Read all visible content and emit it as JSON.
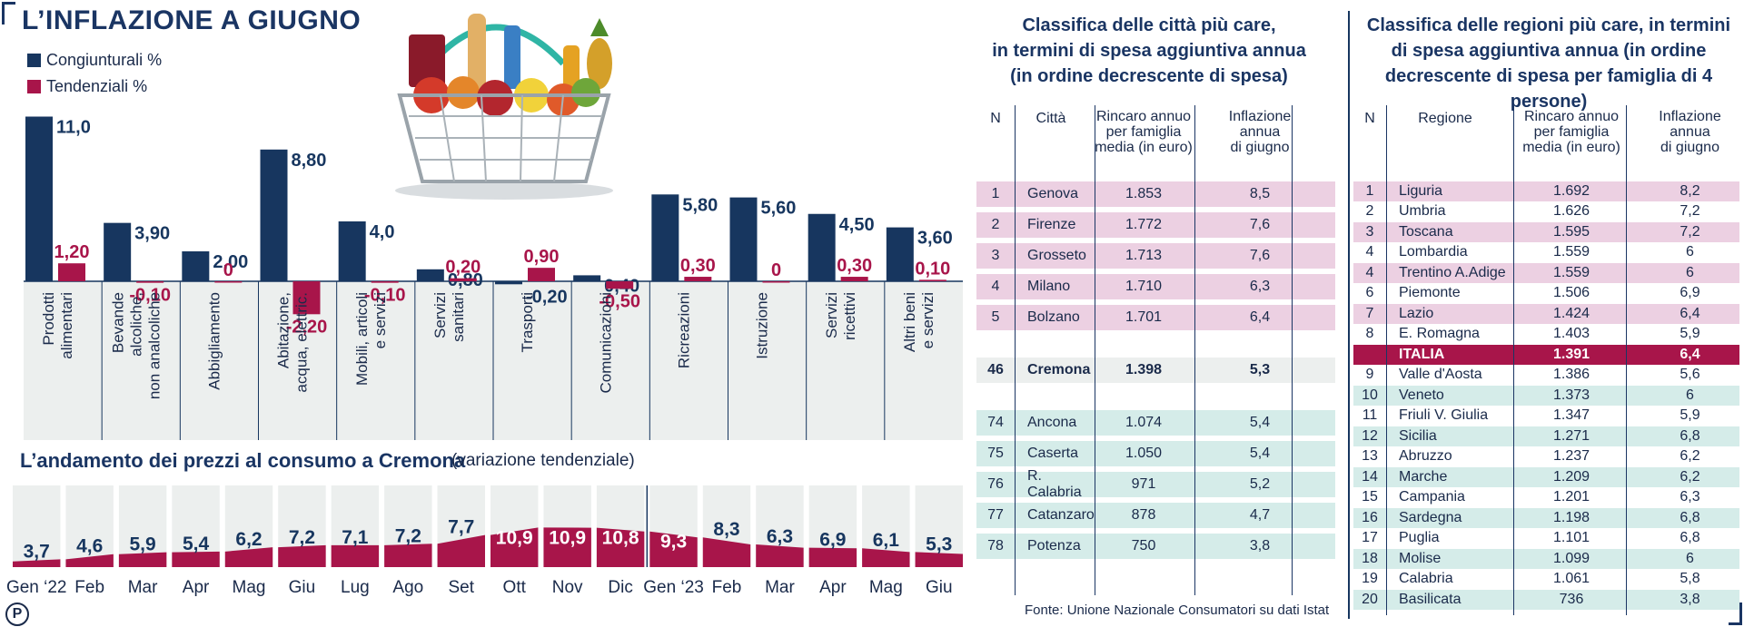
{
  "title": "L’INFLAZIONE A GIUGNO",
  "colors": {
    "navy": "#17365f",
    "crimson": "#a8154a",
    "panel": "#ecefee",
    "pink": "#ecd0e2",
    "teal": "#d5ece9",
    "highlight": "#a8154a"
  },
  "chart_data": [
    {
      "type": "bar",
      "title": "",
      "legend_placement": "top-left",
      "categories": [
        "Prodotti alimentari",
        "Bevande alcoliche, non analcoliche",
        "Abbigliamento",
        "Abitazione, acqua, elettric.",
        "Mobili, articoli e servizi",
        "Servizi sanitari",
        "Trasporti",
        "Comunicazioni",
        "Ricreazioni",
        "Istruzione",
        "Servizi ricettivi",
        "Altri beni e servizi"
      ],
      "series": [
        {
          "name": "Congiunturali %",
          "values": [
            11.0,
            3.9,
            2.0,
            8.8,
            4.0,
            0.8,
            -0.2,
            0.4,
            5.8,
            5.6,
            4.5,
            3.6
          ],
          "labels": [
            "11,0",
            "3,90",
            "2,00",
            "8,80",
            "4,0",
            "0,80",
            "-0,20",
            "0,40",
            "5,80",
            "5,60",
            "4,50",
            "3,60"
          ]
        },
        {
          "name": "Tendenziali %",
          "values": [
            1.2,
            -0.1,
            0,
            -2.2,
            -0.1,
            0.2,
            0.9,
            -0.5,
            0.3,
            0,
            0.3,
            0.1
          ],
          "labels": [
            "1,20",
            "-0,10",
            "0",
            "-2,20",
            "-0,10",
            "0,20",
            "0,90",
            "-0,50",
            "0,30",
            "0",
            "0,30",
            "0,10"
          ]
        }
      ]
    },
    {
      "type": "area",
      "title": "L’andamento dei prezzi al consumo a Cremona",
      "subtitle": "(variazione tendenziale)",
      "categories": [
        "Gen ‘22",
        "Feb",
        "Mar",
        "Apr",
        "Mag",
        "Giu",
        "Lug",
        "Ago",
        "Set",
        "Ott",
        "Nov",
        "Dic",
        "Gen ‘23",
        "Feb",
        "Mar",
        "Apr",
        "Mag",
        "Giu"
      ],
      "values": [
        3.7,
        4.6,
        5.9,
        5.4,
        6.2,
        7.2,
        7.1,
        7.2,
        7.7,
        10.9,
        10.9,
        10.8,
        9.3,
        8.3,
        6.3,
        6.9,
        6.1,
        5.3
      ],
      "labels": [
        "3,7",
        "4,6",
        "5,9",
        "5,4",
        "6,2",
        "7,2",
        "7,1",
        "7,2",
        "7,7",
        "10,9",
        "10,9",
        "10,8",
        "9,3",
        "8,3",
        "6,3",
        "6,9",
        "6,1",
        "5,3"
      ]
    }
  ],
  "cities": {
    "title": [
      "Classifica delle città più care,",
      "in termini di spesa aggiuntiva annua",
      "(in ordine decrescente di spesa)"
    ],
    "headers": {
      "n": "N",
      "name": "Città",
      "rincaro": [
        "Rincaro annuo",
        "per famiglia",
        "media (in euro)"
      ],
      "inflazione": [
        "Inflazione",
        "annua",
        "di giugno"
      ]
    },
    "groups": [
      {
        "style": "pink",
        "rows": [
          {
            "n": "1",
            "name": "Genova",
            "rincaro": "1.853",
            "infl": "8,5"
          },
          {
            "n": "2",
            "name": "Firenze",
            "rincaro": "1.772",
            "infl": "7,6"
          },
          {
            "n": "3",
            "name": "Grosseto",
            "rincaro": "1.713",
            "infl": "7,6"
          },
          {
            "n": "4",
            "name": "Milano",
            "rincaro": "1.710",
            "infl": "6,3"
          },
          {
            "n": "5",
            "name": "Bolzano",
            "rincaro": "1.701",
            "infl": "6,4"
          }
        ]
      },
      {
        "style": "panel",
        "rows": [
          {
            "n": "46",
            "name": "Cremona",
            "rincaro": "1.398",
            "infl": "5,3",
            "bold": true
          }
        ]
      },
      {
        "style": "teal",
        "rows": [
          {
            "n": "74",
            "name": "Ancona",
            "rincaro": "1.074",
            "infl": "5,4"
          },
          {
            "n": "75",
            "name": "Caserta",
            "rincaro": "1.050",
            "infl": "5,4"
          },
          {
            "n": "76",
            "name": "R. Calabria",
            "rincaro": "971",
            "infl": "5,2"
          },
          {
            "n": "77",
            "name": "Catanzaro",
            "rincaro": "878",
            "infl": "4,7"
          },
          {
            "n": "78",
            "name": "Potenza",
            "rincaro": "750",
            "infl": "3,8"
          }
        ]
      }
    ],
    "source": "Fonte: Unione Nazionale Consumatori su dati Istat"
  },
  "regions": {
    "title": [
      "Classifica delle regioni più care, in termini",
      "di spesa aggiuntiva annua (in ordine",
      "decrescente di spesa per famiglia di 4 persone)"
    ],
    "headers": {
      "n": "N",
      "name": "Regione",
      "rincaro": [
        "Rincaro annuo",
        "per famiglia",
        "media (in euro)"
      ],
      "inflazione": [
        "Inflazione",
        "annua",
        "di giugno"
      ]
    },
    "rows": [
      {
        "n": "1",
        "name": "Liguria",
        "rincaro": "1.692",
        "infl": "8,2",
        "style": "pink"
      },
      {
        "n": "2",
        "name": "Umbria",
        "rincaro": "1.626",
        "infl": "7,2",
        "style": "white"
      },
      {
        "n": "3",
        "name": "Toscana",
        "rincaro": "1.595",
        "infl": "7,2",
        "style": "pink"
      },
      {
        "n": "4",
        "name": "Lombardia",
        "rincaro": "1.559",
        "infl": "6",
        "style": "white"
      },
      {
        "n": "4",
        "name": "Trentino A.Adige",
        "rincaro": "1.559",
        "infl": "6",
        "style": "pink"
      },
      {
        "n": "6",
        "name": "Piemonte",
        "rincaro": "1.506",
        "infl": "6,9",
        "style": "white"
      },
      {
        "n": "7",
        "name": "Lazio",
        "rincaro": "1.424",
        "infl": "6,4",
        "style": "pink"
      },
      {
        "n": "8",
        "name": "E. Romagna",
        "rincaro": "1.403",
        "infl": "5,9",
        "style": "white"
      },
      {
        "n": "",
        "name": "ITALIA",
        "rincaro": "1.391",
        "infl": "6,4",
        "style": "highlight"
      },
      {
        "n": "9",
        "name": "Valle d'Aosta",
        "rincaro": "1.386",
        "infl": "5,6",
        "style": "white"
      },
      {
        "n": "10",
        "name": "Veneto",
        "rincaro": "1.373",
        "infl": "6",
        "style": "teal"
      },
      {
        "n": "11",
        "name": "Friuli V. Giulia",
        "rincaro": "1.347",
        "infl": "5,9",
        "style": "white"
      },
      {
        "n": "12",
        "name": "Sicilia",
        "rincaro": "1.271",
        "infl": "6,8",
        "style": "teal"
      },
      {
        "n": "13",
        "name": "Abruzzo",
        "rincaro": "1.237",
        "infl": "6,2",
        "style": "white"
      },
      {
        "n": "14",
        "name": "Marche",
        "rincaro": "1.209",
        "infl": "6,2",
        "style": "teal"
      },
      {
        "n": "15",
        "name": "Campania",
        "rincaro": "1.201",
        "infl": "6,3",
        "style": "white"
      },
      {
        "n": "16",
        "name": "Sardegna",
        "rincaro": "1.198",
        "infl": "6,8",
        "style": "teal"
      },
      {
        "n": "17",
        "name": "Puglia",
        "rincaro": "1.101",
        "infl": "6,8",
        "style": "white"
      },
      {
        "n": "18",
        "name": "Molise",
        "rincaro": "1.099",
        "infl": "6",
        "style": "teal"
      },
      {
        "n": "19",
        "name": "Calabria",
        "rincaro": "1.061",
        "infl": "5,8",
        "style": "white"
      },
      {
        "n": "20",
        "name": "Basilicata",
        "rincaro": "736",
        "infl": "3,8",
        "style": "teal"
      }
    ]
  },
  "logo": "P"
}
